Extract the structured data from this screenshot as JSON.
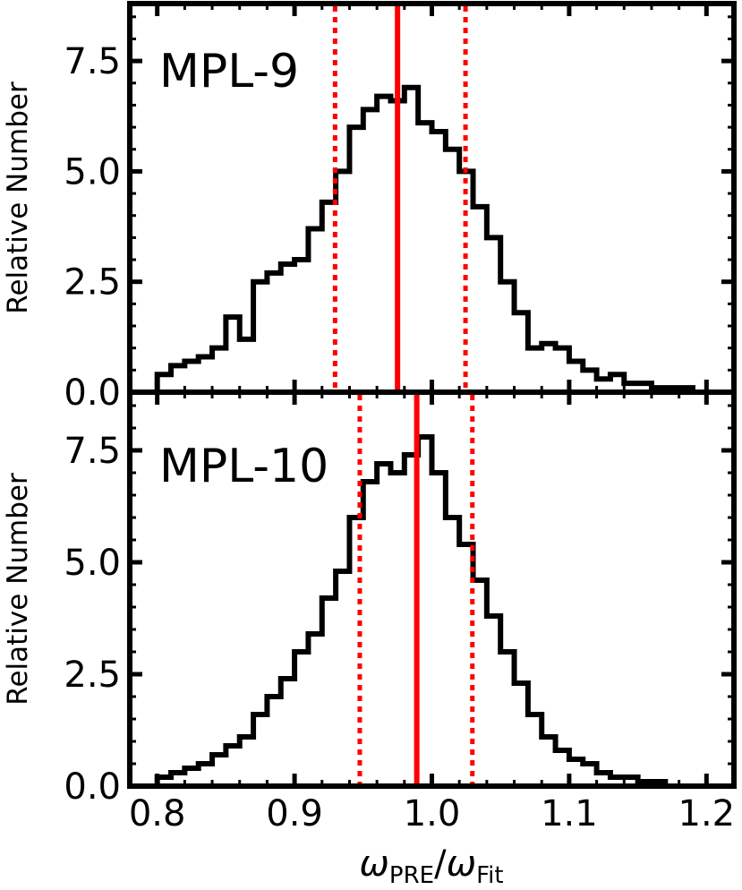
{
  "chart_data": [
    {
      "type": "histogram",
      "panel": "MPL-9",
      "ylabel": "Relative Number",
      "ylim": [
        0,
        8.8
      ],
      "xlim": [
        0.78,
        1.22
      ],
      "yticks": [
        "0.0",
        "2.5",
        "5.0",
        "7.5"
      ],
      "x": [
        0.8,
        0.81,
        0.82,
        0.83,
        0.84,
        0.85,
        0.86,
        0.87,
        0.88,
        0.89,
        0.9,
        0.91,
        0.92,
        0.93,
        0.94,
        0.95,
        0.96,
        0.97,
        0.98,
        0.99,
        1.0,
        1.01,
        1.02,
        1.03,
        1.04,
        1.05,
        1.06,
        1.07,
        1.08,
        1.09,
        1.1,
        1.11,
        1.12,
        1.13,
        1.14,
        1.15,
        1.16,
        1.17,
        1.18,
        1.19
      ],
      "values": [
        0.4,
        0.6,
        0.7,
        0.8,
        1.0,
        1.7,
        1.2,
        2.5,
        2.7,
        2.9,
        3.0,
        3.7,
        4.3,
        5.0,
        6.0,
        6.4,
        6.7,
        6.6,
        6.9,
        6.1,
        5.9,
        5.5,
        5.0,
        4.2,
        3.5,
        2.5,
        1.8,
        1.0,
        1.1,
        1.0,
        0.7,
        0.5,
        0.3,
        0.4,
        0.2,
        0.2,
        0.1,
        0.1,
        0.1,
        0.0
      ],
      "vlines": [
        {
          "x": 0.975,
          "style": "solid",
          "color": "#ff0000"
        },
        {
          "x": 0.9295,
          "style": "dotted",
          "color": "#ff0000"
        },
        {
          "x": 1.0245,
          "style": "dotted",
          "color": "#ff0000"
        }
      ]
    },
    {
      "type": "histogram",
      "panel": "MPL-10",
      "ylabel": "Relative Number",
      "ylim": [
        0,
        8.8
      ],
      "xlim": [
        0.78,
        1.22
      ],
      "xticks": [
        "0.8",
        "0.9",
        "1.0",
        "1.1",
        "1.2"
      ],
      "xlabel_main": "ω",
      "xlabel_sub1": "PRE",
      "xlabel_sep": "/",
      "xlabel_sub2": "Fit",
      "yticks": [
        "0.0",
        "2.5",
        "5.0",
        "7.5"
      ],
      "x": [
        0.8,
        0.81,
        0.82,
        0.83,
        0.84,
        0.85,
        0.86,
        0.87,
        0.88,
        0.89,
        0.9,
        0.91,
        0.92,
        0.93,
        0.94,
        0.95,
        0.96,
        0.97,
        0.98,
        0.99,
        1.0,
        1.01,
        1.02,
        1.03,
        1.04,
        1.05,
        1.06,
        1.07,
        1.08,
        1.09,
        1.1,
        1.11,
        1.12,
        1.13,
        1.14,
        1.15,
        1.16,
        1.17,
        1.18,
        1.19
      ],
      "values": [
        0.2,
        0.3,
        0.4,
        0.5,
        0.7,
        0.9,
        1.1,
        1.6,
        2.0,
        2.4,
        3.0,
        3.4,
        4.2,
        4.8,
        6.0,
        6.8,
        7.2,
        7.0,
        7.4,
        7.8,
        7.0,
        6.0,
        5.4,
        4.6,
        3.8,
        3.0,
        2.3,
        1.6,
        1.1,
        0.8,
        0.6,
        0.5,
        0.3,
        0.2,
        0.2,
        0.1,
        0.1,
        0.0,
        0.0,
        0.0
      ],
      "vlines": [
        {
          "x": 0.989,
          "style": "solid",
          "color": "#ff0000"
        },
        {
          "x": 0.9475,
          "style": "dotted",
          "color": "#ff0000"
        },
        {
          "x": 1.0295,
          "style": "dotted",
          "color": "#ff0000"
        }
      ]
    }
  ]
}
